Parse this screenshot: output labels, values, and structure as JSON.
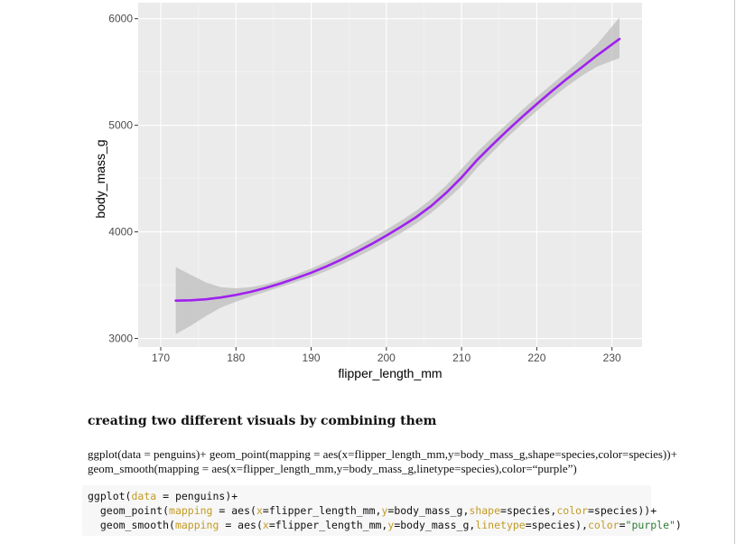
{
  "chart_data": {
    "type": "line",
    "xlabel": "flipper_length_mm",
    "ylabel": "body_mass_g",
    "xlim": [
      167,
      234
    ],
    "ylim": [
      2920,
      6150
    ],
    "x_ticks": [
      170,
      180,
      190,
      200,
      210,
      220,
      230
    ],
    "y_ticks": [
      3000,
      4000,
      5000,
      6000
    ],
    "grid": true,
    "line_color": "#a020f0",
    "band_color": "#bdbdbd",
    "panel_color": "#ebebeb",
    "series": [
      {
        "x": [
          172,
          174,
          176,
          178,
          180,
          182,
          184,
          186,
          188,
          190,
          192,
          194,
          196,
          198,
          200,
          202,
          204,
          206,
          208,
          210,
          212,
          214,
          216,
          218,
          220,
          222,
          224,
          226,
          228,
          231
        ],
        "values": [
          3355,
          3358,
          3368,
          3385,
          3408,
          3438,
          3475,
          3518,
          3566,
          3617,
          3675,
          3740,
          3810,
          3885,
          3965,
          4050,
          4140,
          4245,
          4370,
          4510,
          4670,
          4810,
          4945,
          5075,
          5200,
          5320,
          5435,
          5545,
          5655,
          5810
        ],
        "lower": [
          3040,
          3120,
          3210,
          3290,
          3345,
          3395,
          3440,
          3485,
          3530,
          3577,
          3632,
          3693,
          3760,
          3832,
          3910,
          3992,
          4080,
          4180,
          4300,
          4430,
          4595,
          4740,
          4880,
          5010,
          5135,
          5255,
          5365,
          5465,
          5550,
          5630
        ],
        "upper": [
          3670,
          3596,
          3526,
          3480,
          3471,
          3481,
          3510,
          3551,
          3602,
          3657,
          3718,
          3787,
          3860,
          3938,
          4020,
          4108,
          4200,
          4310,
          4440,
          4590,
          4745,
          4880,
          5010,
          5140,
          5265,
          5385,
          5505,
          5625,
          5760,
          6010
        ]
      }
    ]
  },
  "text": {
    "heading": "creating two different visuals by combining them",
    "prose_line1": "ggplot(data = penguins)+ geom_point(mapping = aes(x=flipper_length_mm,y=body_mass_g,shape=species,color=species))+",
    "prose_line2": "geom_smooth(mapping = aes(x=flipper_length_mm,y=body_mass_g,linetype=species),color=“purple”)"
  },
  "code": {
    "l1_a": "ggplot(",
    "l1_arg": "data",
    "l1_b": " = penguins)+",
    "l2_a": "  geom_point(",
    "l2_arg1": "mapping",
    "l2_b": " = aes(",
    "l2_arg2": "x",
    "l2_c": "=flipper_length_mm,",
    "l2_arg3": "y",
    "l2_d": "=body_mass_g,",
    "l2_arg4": "shape",
    "l2_e": "=species,",
    "l2_arg5": "color",
    "l2_f": "=species))+",
    "l3_a": "  geom_smooth(",
    "l3_arg1": "mapping",
    "l3_b": " = aes(",
    "l3_arg2": "x",
    "l3_c": "=flipper_length_mm,",
    "l3_arg3": "y",
    "l3_d": "=body_mass_g,",
    "l3_arg4": "linetype",
    "l3_e": "=species),",
    "l3_arg5": "color",
    "l3_f": "=",
    "l3_str": "\"purple\"",
    "l3_g": ")"
  }
}
